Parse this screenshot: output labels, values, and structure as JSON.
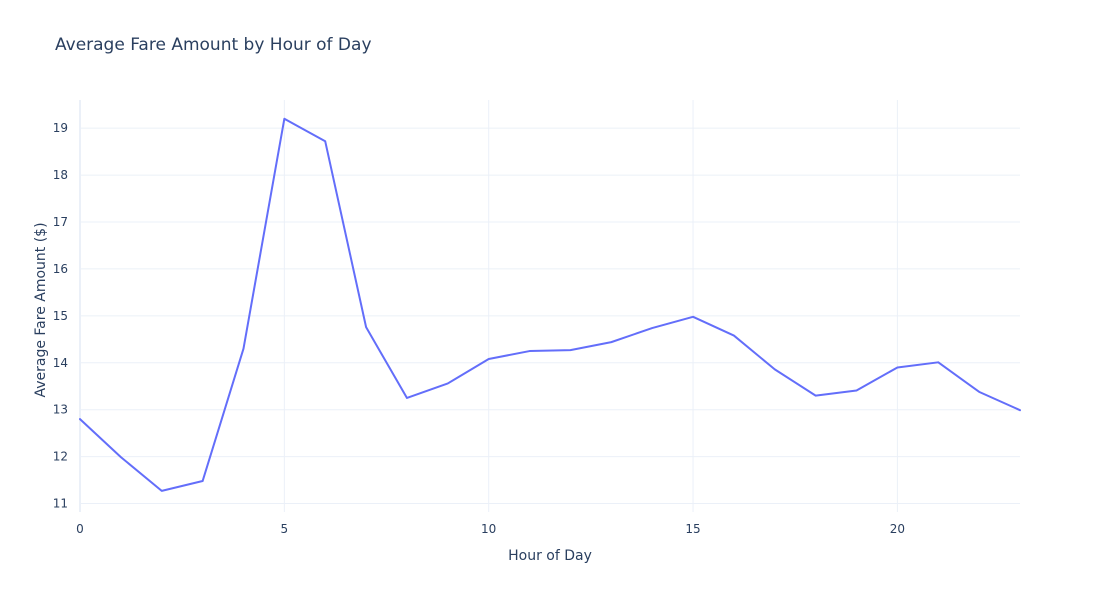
{
  "chart_data": {
    "type": "line",
    "title": "Average Fare Amount by Hour of Day",
    "xlabel": "Hour of Day",
    "ylabel": "Average Fare Amount ($)",
    "xlim": [
      0,
      23
    ],
    "ylim": [
      10.82,
      19.6
    ],
    "x_ticks": [
      0,
      5,
      10,
      15,
      20
    ],
    "y_ticks": [
      11,
      12,
      13,
      14,
      15,
      16,
      17,
      18,
      19
    ],
    "grid": true,
    "legend": "none",
    "series": [
      {
        "color": "#636efa",
        "x": [
          0,
          1,
          2,
          3,
          4,
          5,
          6,
          7,
          8,
          9,
          10,
          11,
          12,
          13,
          14,
          15,
          16,
          17,
          18,
          19,
          20,
          21,
          22,
          23
        ],
        "y": [
          12.8,
          11.99,
          11.27,
          11.48,
          14.3,
          19.2,
          18.72,
          14.76,
          13.25,
          13.56,
          14.08,
          14.25,
          14.27,
          14.44,
          14.74,
          14.98,
          14.58,
          13.86,
          13.3,
          13.41,
          13.9,
          14.01,
          13.38,
          12.99
        ]
      }
    ]
  }
}
